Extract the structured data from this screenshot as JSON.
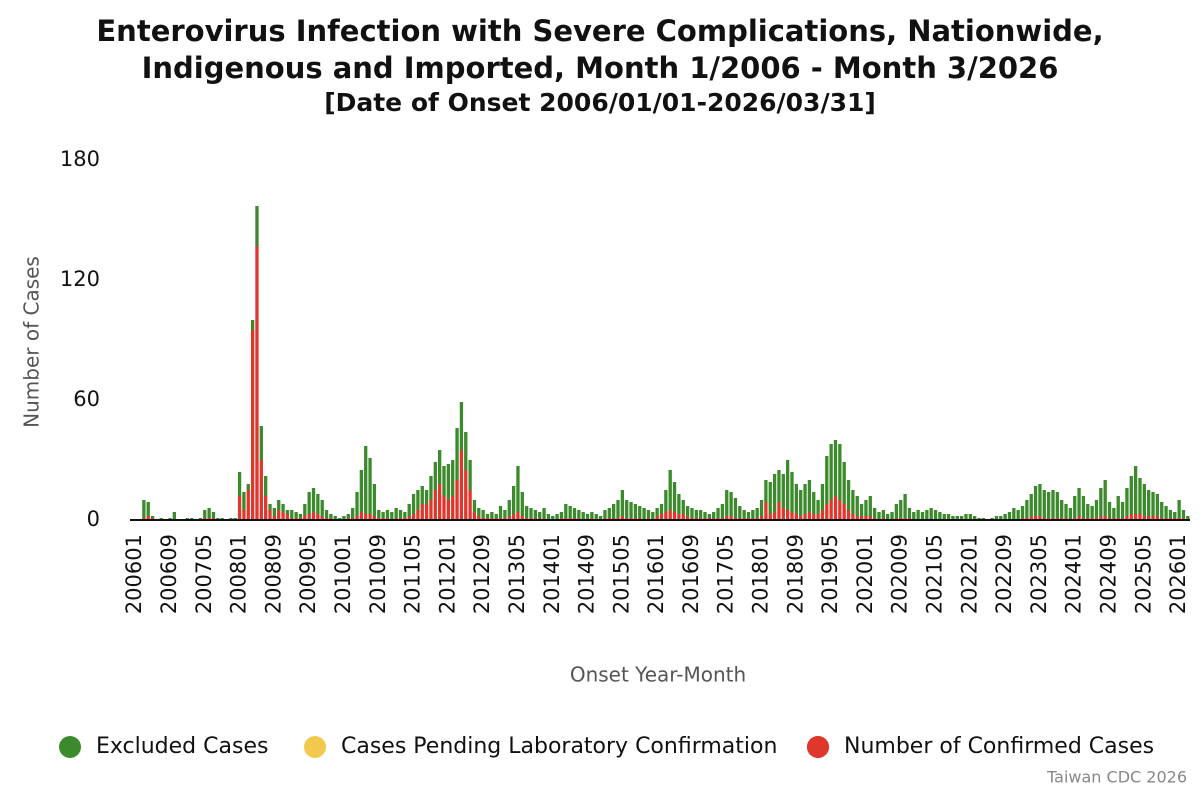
{
  "chart_data": {
    "type": "stacked_bar",
    "title": [
      "Enterovirus Infection with Severe Complications, Nationwide,",
      "Indigenous and Imported, Month 1/2006 - Month 3/2026"
    ],
    "subtitle": "[Date of Onset 2006/01/01-2026/03/31]",
    "x_label": "Onset Year-Month",
    "y_label": "Number of Cases",
    "source": "Taiwan CDC 2026",
    "ylim": [
      0,
      180
    ],
    "yticks": [
      0,
      60,
      120,
      180
    ],
    "grid": false,
    "legend": "bottom",
    "categories": [
      "200601",
      null,
      null,
      null,
      null,
      null,
      null,
      null,
      "200609",
      null,
      null,
      null,
      null,
      null,
      null,
      null,
      "200705",
      null,
      null,
      null,
      null,
      null,
      null,
      null,
      "200801",
      null,
      null,
      null,
      null,
      null,
      null,
      null,
      "200809",
      null,
      null,
      null,
      null,
      null,
      null,
      null,
      "200905",
      null,
      null,
      null,
      null,
      null,
      null,
      null,
      "201001",
      null,
      null,
      null,
      null,
      null,
      null,
      null,
      "201009",
      null,
      null,
      null,
      null,
      null,
      null,
      null,
      "201105",
      null,
      null,
      null,
      null,
      null,
      null,
      null,
      "201201",
      null,
      null,
      null,
      null,
      null,
      null,
      null,
      "201209",
      null,
      null,
      null,
      null,
      null,
      null,
      null,
      "201305",
      null,
      null,
      null,
      null,
      null,
      null,
      null,
      "201401",
      null,
      null,
      null,
      null,
      null,
      null,
      null,
      "201409",
      null,
      null,
      null,
      null,
      null,
      null,
      null,
      "201505",
      null,
      null,
      null,
      null,
      null,
      null,
      null,
      "201601",
      null,
      null,
      null,
      null,
      null,
      null,
      null,
      "201609",
      null,
      null,
      null,
      null,
      null,
      null,
      null,
      "201705",
      null,
      null,
      null,
      null,
      null,
      null,
      null,
      "201801",
      null,
      null,
      null,
      null,
      null,
      null,
      null,
      "201809",
      null,
      null,
      null,
      null,
      null,
      null,
      null,
      "201905",
      null,
      null,
      null,
      null,
      null,
      null,
      null,
      "202001",
      null,
      null,
      null,
      null,
      null,
      null,
      null,
      "202009",
      null,
      null,
      null,
      null,
      null,
      null,
      null,
      "202105",
      null,
      null,
      null,
      null,
      null,
      null,
      null,
      "202201",
      null,
      null,
      null,
      null,
      null,
      null,
      null,
      "202209",
      null,
      null,
      null,
      null,
      null,
      null,
      null,
      "202305",
      null,
      null,
      null,
      null,
      null,
      null,
      null,
      "202401",
      null,
      null,
      null,
      null,
      null,
      null,
      null,
      "202409",
      null,
      null,
      null,
      null,
      null,
      null,
      null,
      "202505",
      null,
      null,
      null,
      null,
      null,
      null,
      null,
      "202601",
      null,
      null
    ],
    "series": [
      {
        "name": "Excluded Cases",
        "color": "#3b8a2b",
        "values": [
          0,
          0,
          9,
          7,
          1,
          0,
          1,
          0,
          1,
          4,
          0,
          0,
          1,
          1,
          0,
          1,
          4,
          5,
          3,
          1,
          1,
          0,
          1,
          1,
          12,
          9,
          3,
          5,
          20,
          17,
          10,
          3,
          4,
          5,
          4,
          2,
          4,
          3,
          2,
          6,
          11,
          12,
          10,
          8,
          4,
          2,
          2,
          1,
          2,
          2,
          5,
          12,
          21,
          34,
          28,
          16,
          4,
          3,
          4,
          4,
          5,
          4,
          3,
          6,
          10,
          10,
          9,
          7,
          12,
          14,
          17,
          15,
          18,
          18,
          26,
          24,
          19,
          15,
          6,
          4,
          4,
          2,
          3,
          2,
          6,
          4,
          8,
          14,
          23,
          12,
          6,
          5,
          4,
          4,
          5,
          3,
          2,
          3,
          3,
          7,
          6,
          5,
          4,
          4,
          3,
          3,
          3,
          2,
          4,
          5,
          7,
          9,
          13,
          9,
          8,
          7,
          6,
          6,
          4,
          4,
          4,
          5,
          11,
          20,
          15,
          10,
          7,
          5,
          5,
          4,
          4,
          3,
          2,
          3,
          5,
          7,
          13,
          12,
          10,
          6,
          4,
          3,
          4,
          5,
          8,
          11,
          16,
          19,
          16,
          17,
          25,
          20,
          15,
          13,
          15,
          16,
          11,
          7,
          13,
          24,
          28,
          28,
          28,
          21,
          15,
          12,
          10,
          6,
          8,
          10,
          5,
          4,
          4,
          3,
          4,
          7,
          9,
          12,
          5,
          4,
          5,
          4,
          5,
          6,
          5,
          4,
          3,
          3,
          2,
          2,
          2,
          3,
          3,
          2,
          1,
          1,
          0,
          1,
          2,
          2,
          3,
          4,
          6,
          5,
          6,
          9,
          11,
          15,
          16,
          14,
          13,
          14,
          13,
          9,
          7,
          6,
          11,
          14,
          11,
          7,
          6,
          9,
          14,
          18,
          8,
          5,
          11,
          8,
          14,
          19,
          24,
          18,
          16,
          13,
          12,
          11,
          8,
          6,
          4,
          3,
          9,
          4,
          2
        ]
      },
      {
        "name": "Cases Pending Laboratory Confirmation",
        "color": "#f2c94c",
        "values": [
          0,
          0,
          0,
          0,
          0,
          0,
          0,
          0,
          0,
          0,
          0,
          0,
          0,
          0,
          0,
          0,
          0,
          0,
          0,
          0,
          0,
          0,
          0,
          0,
          0,
          0,
          0,
          0,
          0,
          0,
          0,
          0,
          0,
          0,
          0,
          0,
          0,
          0,
          0,
          0,
          0,
          0,
          0,
          0,
          0,
          0,
          0,
          0,
          0,
          0,
          0,
          0,
          0,
          0,
          0,
          0,
          0,
          0,
          0,
          0,
          0,
          0,
          0,
          0,
          0,
          0,
          0,
          0,
          0,
          0,
          0,
          0,
          0,
          0,
          0,
          0,
          0,
          0,
          0,
          0,
          0,
          0,
          0,
          0,
          0,
          0,
          0,
          0,
          0,
          0,
          0,
          0,
          0,
          0,
          0,
          0,
          0,
          0,
          0,
          0,
          0,
          0,
          0,
          0,
          0,
          0,
          0,
          0,
          0,
          0,
          0,
          0,
          0,
          0,
          0,
          0,
          0,
          0,
          0,
          0,
          0,
          0,
          0,
          0,
          0,
          0,
          0,
          0,
          0,
          0,
          0,
          0,
          0,
          0,
          0,
          0,
          0,
          0,
          0,
          0,
          0,
          0,
          0,
          0,
          0,
          0,
          0,
          0,
          0,
          0,
          0,
          0,
          0,
          0,
          0,
          0,
          0,
          0,
          0,
          0,
          0,
          0,
          0,
          0,
          0,
          0,
          0,
          0,
          0,
          0,
          0,
          0,
          0,
          0,
          0,
          0,
          0,
          0,
          0,
          0,
          0,
          0,
          0,
          0,
          0,
          0,
          0,
          0,
          0,
          0,
          0,
          0,
          0,
          0,
          0,
          0,
          0,
          0,
          0,
          0,
          0,
          0,
          0,
          0,
          0,
          0,
          0,
          0,
          0,
          0,
          0,
          0,
          0,
          0,
          0,
          0,
          0,
          0,
          0,
          0,
          0,
          0,
          0,
          0,
          0,
          0,
          0,
          0,
          0,
          0,
          0,
          0,
          0,
          0,
          0,
          0,
          0,
          0,
          0,
          0,
          0,
          0,
          0
        ]
      },
      {
        "name": "Number of Confirmed Cases",
        "color": "#e0372d",
        "values": [
          0,
          0,
          1,
          2,
          1,
          0,
          0,
          0,
          0,
          0,
          0,
          0,
          0,
          0,
          0,
          0,
          1,
          1,
          1,
          0,
          0,
          0,
          0,
          0,
          12,
          5,
          15,
          95,
          137,
          30,
          12,
          5,
          2,
          5,
          4,
          3,
          1,
          1,
          1,
          2,
          3,
          4,
          3,
          2,
          1,
          1,
          0,
          0,
          0,
          1,
          1,
          2,
          4,
          3,
          3,
          2,
          1,
          1,
          1,
          0,
          1,
          1,
          1,
          2,
          3,
          5,
          8,
          8,
          10,
          15,
          18,
          12,
          10,
          12,
          20,
          35,
          25,
          15,
          4,
          2,
          1,
          1,
          1,
          1,
          1,
          1,
          2,
          3,
          4,
          2,
          1,
          1,
          1,
          0,
          1,
          0,
          0,
          0,
          1,
          1,
          1,
          1,
          1,
          0,
          0,
          1,
          0,
          0,
          1,
          1,
          1,
          1,
          2,
          1,
          1,
          1,
          1,
          0,
          1,
          0,
          2,
          3,
          4,
          5,
          4,
          3,
          3,
          2,
          1,
          1,
          1,
          1,
          1,
          1,
          1,
          1,
          2,
          2,
          1,
          1,
          1,
          1,
          1,
          1,
          2,
          9,
          3,
          4,
          9,
          6,
          5,
          4,
          3,
          2,
          3,
          4,
          3,
          3,
          5,
          8,
          10,
          12,
          10,
          8,
          5,
          3,
          2,
          2,
          2,
          2,
          1,
          0,
          1,
          0,
          0,
          1,
          1,
          1,
          1,
          0,
          0,
          0,
          0,
          0,
          0,
          0,
          0,
          0,
          0,
          0,
          0,
          0,
          0,
          0,
          0,
          0,
          0,
          0,
          0,
          0,
          0,
          0,
          0,
          0,
          1,
          1,
          2,
          2,
          2,
          1,
          1,
          1,
          1,
          1,
          1,
          0,
          1,
          2,
          1,
          1,
          1,
          1,
          2,
          2,
          1,
          1,
          1,
          1,
          2,
          3,
          3,
          3,
          2,
          2,
          2,
          2,
          1,
          1,
          1,
          1,
          1,
          1,
          0
        ]
      }
    ]
  }
}
